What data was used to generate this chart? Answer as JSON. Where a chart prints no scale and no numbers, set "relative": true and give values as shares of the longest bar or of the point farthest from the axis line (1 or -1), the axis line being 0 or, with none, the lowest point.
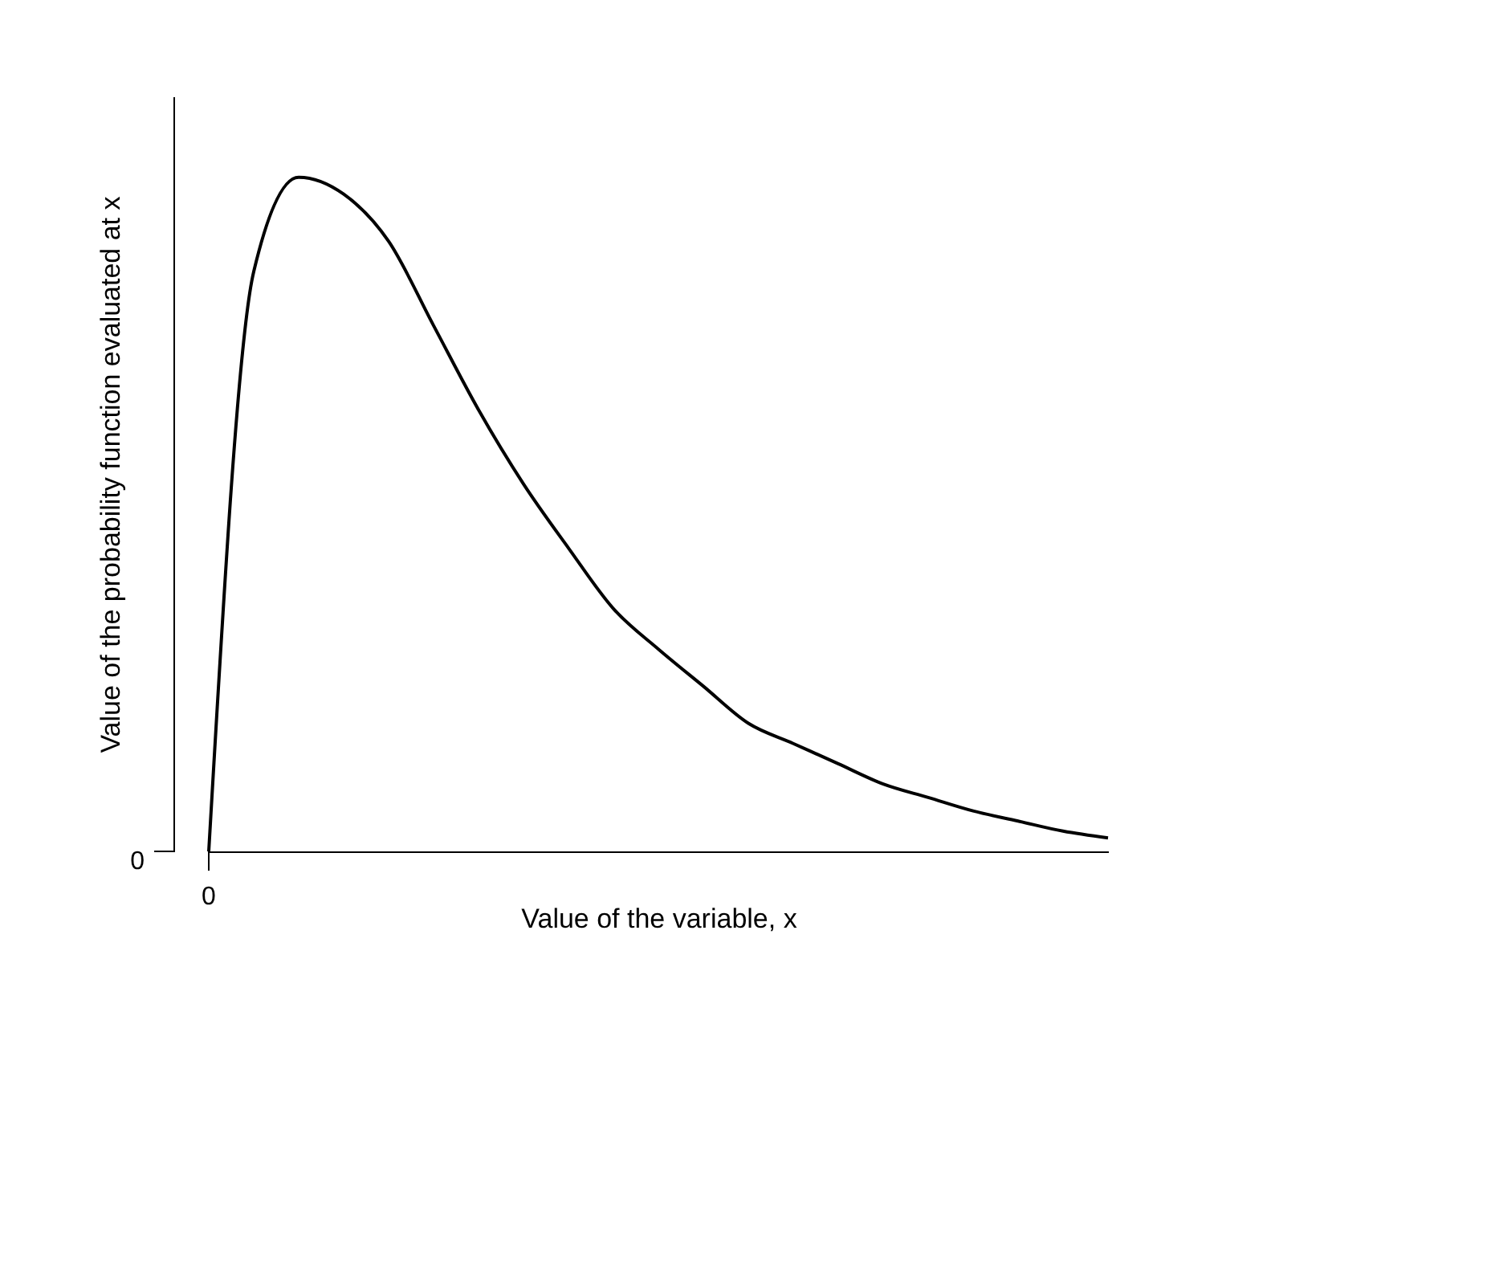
{
  "chart_data": {
    "type": "line",
    "relative": true,
    "xlabel": "Value of the variable, x",
    "ylabel": "Value of the probability function evaluated at x",
    "categories": [
      null,
      null,
      null,
      null,
      null,
      null,
      null,
      null,
      null,
      null,
      null,
      null,
      null,
      null,
      null,
      null,
      null,
      null,
      null,
      null,
      null
    ],
    "series": [
      {
        "color": "#000000",
        "values": [
          0,
          0.86,
          1,
          0.975,
          0.905,
          0.78,
          0.655,
          0.545,
          0.45,
          0.36,
          0.3,
          0.245,
          0.19,
          0.16,
          0.13,
          0.1,
          0.08,
          0.06,
          0.045,
          0.03,
          0.02
        ]
      }
    ],
    "annotations": [
      "0",
      "0"
    ]
  }
}
